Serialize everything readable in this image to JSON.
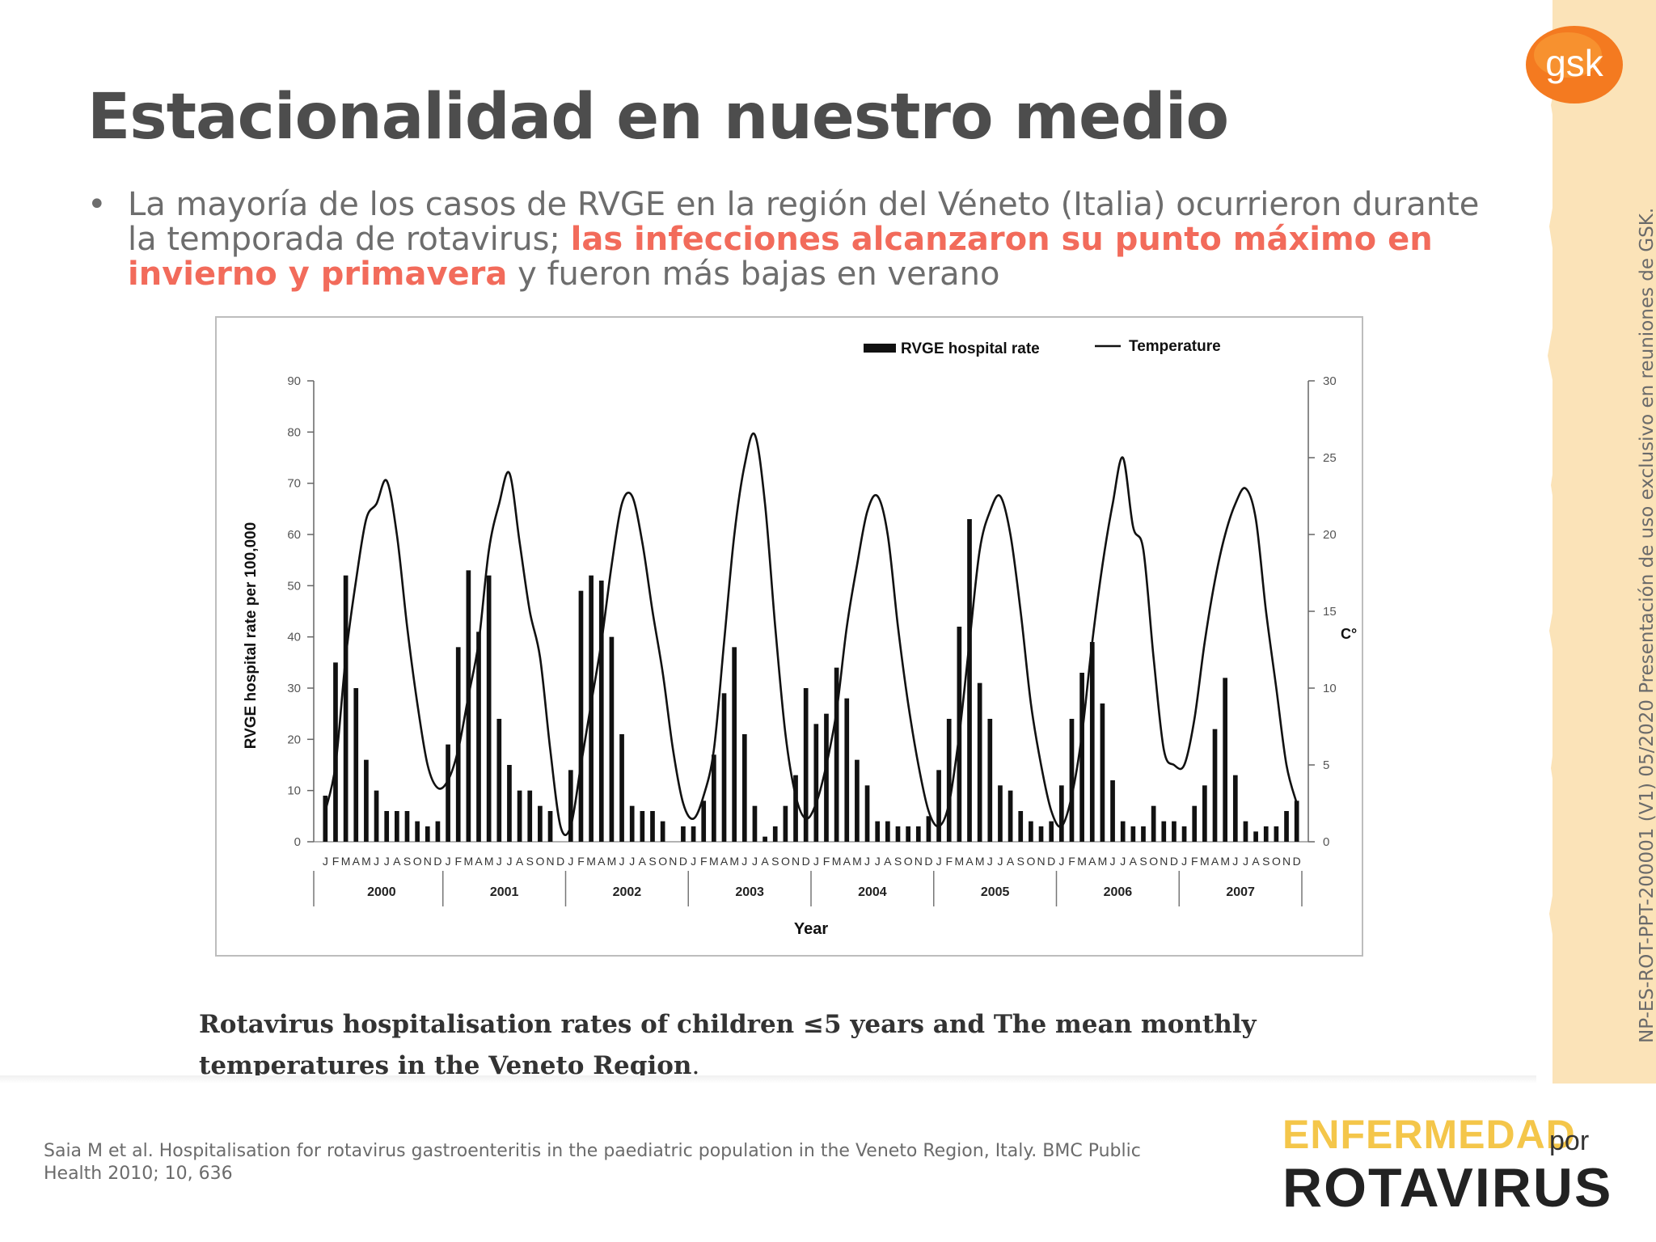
{
  "title": "Estacionalidad en nuestro medio",
  "bullet": {
    "marker": "•",
    "text_before": "La mayoría de los casos de RVGE en la región del Véneto (Italia) ocurrieron durante la temporada de rotavirus; ",
    "highlight": "las infecciones alcanzaron su punto máximo en invierno y primavera",
    "text_after": " y fueron más bajas en verano"
  },
  "side_label": "NP-ES-ROT-PPT-200001 (V1) 05/2020    Presentación de uso exclusivo en reuniones de GSK.",
  "brand_logo": "gsk",
  "caption_line1": "Rotavirus hospitalisation rates of children ≤5 years and The mean monthly",
  "caption_line2": "temperatures in the Veneto Region",
  "caption_end": ".",
  "citation": "Saia M et al. Hospitalisation for rotavirus gastroenteritis in the paediatric population in the Veneto Region, Italy. BMC Public Health  2010; 10, 636",
  "footer_logo": {
    "line1": "ENFERMEDAD",
    "por": "por",
    "line2": "ROTAVIRUS"
  },
  "colors": {
    "accent": "#f26b5b",
    "title": "#4d4d4d",
    "strip": "#fbe3b8",
    "gsk_orange": "#f47a20"
  },
  "chart_data": {
    "type": "bar",
    "legend": [
      "RVGE hospital rate",
      "Temperature"
    ],
    "legend_position": "top-right",
    "ylabel": "RVGE hospital rate per 100,000",
    "y2label": "C°",
    "xlabel": "Year",
    "ylim": [
      0,
      90
    ],
    "y2lim": [
      0,
      30
    ],
    "yticks": [
      0,
      10,
      20,
      30,
      40,
      50,
      60,
      70,
      80,
      90
    ],
    "y2ticks": [
      0,
      5,
      10,
      15,
      20,
      25,
      30
    ],
    "years": [
      "2000",
      "2001",
      "2002",
      "2003",
      "2004",
      "2005",
      "2006",
      "2007"
    ],
    "month_labels": [
      "J",
      "F",
      "M",
      "A",
      "M",
      "J",
      "J",
      "A",
      "S",
      "O",
      "N",
      "D"
    ],
    "series": [
      {
        "name": "RVGE hospital rate",
        "values": [
          9,
          35,
          52,
          30,
          16,
          10,
          6,
          6,
          6,
          4,
          3,
          4,
          19,
          38,
          53,
          41,
          52,
          24,
          15,
          10,
          10,
          7,
          6,
          0,
          14,
          49,
          52,
          51,
          40,
          21,
          7,
          6,
          6,
          4,
          0,
          3,
          3,
          8,
          17,
          29,
          38,
          21,
          7,
          1,
          3,
          7,
          13,
          30,
          23,
          25,
          34,
          28,
          16,
          11,
          4,
          4,
          3,
          3,
          3,
          5,
          14,
          24,
          42,
          63,
          31,
          24,
          11,
          10,
          6,
          4,
          3,
          4,
          11,
          24,
          33,
          39,
          27,
          12,
          4,
          3,
          3,
          7,
          4,
          4,
          3,
          7,
          11,
          22,
          32,
          13,
          4,
          2,
          3,
          3,
          6,
          8
        ]
      },
      {
        "name": "Temperature",
        "values": [
          2,
          5,
          12,
          17,
          21,
          22,
          23.5,
          20,
          14,
          9,
          5,
          3.5,
          4,
          6,
          9.5,
          13,
          19,
          22,
          24,
          19.5,
          15,
          12,
          6,
          1,
          1,
          5,
          9,
          13,
          18,
          22,
          22.5,
          19.5,
          15,
          11,
          6,
          2.5,
          1.5,
          3,
          6,
          13,
          20,
          24.5,
          26.5,
          22,
          14,
          7,
          3,
          1.5,
          2.5,
          5,
          8.5,
          14,
          18,
          21.5,
          22.5,
          20,
          14,
          9,
          5,
          2,
          1,
          2.5,
          7,
          13,
          19,
          21.5,
          22.5,
          20,
          15,
          9,
          5,
          2,
          1,
          3,
          7,
          13,
          18,
          22,
          25,
          20.5,
          19,
          12,
          6,
          5,
          5,
          8,
          13,
          17,
          20,
          22,
          23,
          21,
          15,
          10,
          5,
          2.5
        ]
      }
    ]
  }
}
